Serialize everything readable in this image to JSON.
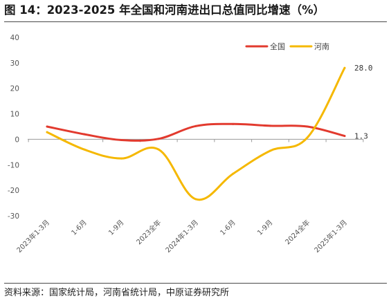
{
  "figure": {
    "title": "图 14：2023-2025 年全国和河南进出口总值同比增速（%）",
    "source": "资料来源：国家统计局，河南省统计局，中原证券研究所"
  },
  "chart_data": {
    "type": "line",
    "title": "",
    "xlabel": "",
    "ylabel": "",
    "categories": [
      "2023年1-3月",
      "1-6月",
      "1-9月",
      "2023全年",
      "2024年1-3月",
      "1-6月",
      "1-9月",
      "2024全年",
      "2025年1-3月"
    ],
    "ylim": [
      -30,
      40
    ],
    "yticks": [
      -30,
      -20,
      -10,
      0,
      10,
      20,
      30,
      40
    ],
    "series": [
      {
        "name": "全国",
        "color": "#e23a2e",
        "values": [
          5.0,
          2.0,
          -0.3,
          0.2,
          5.2,
          6.0,
          5.3,
          5.0,
          1.3
        ]
      },
      {
        "name": "河南",
        "color": "#f5b800",
        "values": [
          2.8,
          -4.0,
          -7.5,
          -4.0,
          -23.5,
          -13.5,
          -4.5,
          0.7,
          28.0
        ]
      }
    ],
    "data_labels": [
      {
        "series": "河南",
        "index": 8,
        "text": "28.0"
      },
      {
        "series": "全国",
        "index": 8,
        "text": "1.3"
      }
    ],
    "legend": "top-right",
    "grid": false
  }
}
